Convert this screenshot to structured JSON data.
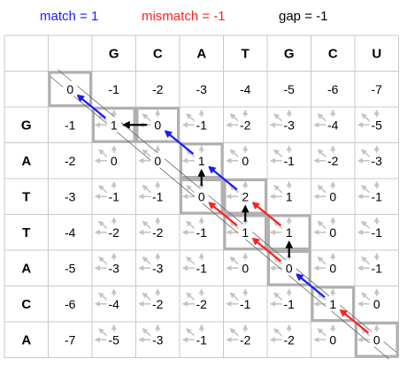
{
  "legend": {
    "match": {
      "text": "match = 1",
      "color": "#1a1aff"
    },
    "mismatch": {
      "text": "mismatch = -1",
      "color": "#ff2020"
    },
    "gap": {
      "text": "gap = -1",
      "color": "#000000"
    }
  },
  "sequence_top": [
    "G",
    "C",
    "A",
    "T",
    "G",
    "C",
    "U"
  ],
  "sequence_left": [
    "G",
    "A",
    "T",
    "T",
    "A",
    "C",
    "A"
  ],
  "matrix": [
    [
      "0",
      "-1",
      "-2",
      "-3",
      "-4",
      "-5",
      "-6",
      "-7"
    ],
    [
      "-1",
      "1",
      "0",
      "-1",
      "-2",
      "-3",
      "-4",
      "-5"
    ],
    [
      "-2",
      "0",
      "0",
      "1",
      "0",
      "-1",
      "-2",
      "-3"
    ],
    [
      "-3",
      "-1",
      "-1",
      "0",
      "2",
      "1",
      "0",
      "-1"
    ],
    [
      "-4",
      "-2",
      "-2",
      "-1",
      "1",
      "1",
      "0",
      "-1"
    ],
    [
      "-5",
      "-3",
      "-3",
      "-1",
      "0",
      "0",
      "0",
      "-1"
    ],
    [
      "-6",
      "-4",
      "-2",
      "-2",
      "-1",
      "-1",
      "1",
      "0"
    ],
    [
      "-7",
      "-5",
      "-3",
      "-1",
      "-2",
      "-2",
      "0",
      "0"
    ]
  ],
  "highlighted_path": [
    [
      0,
      0
    ],
    [
      1,
      1
    ],
    [
      1,
      2
    ],
    [
      2,
      3
    ],
    [
      3,
      3
    ],
    [
      3,
      4
    ],
    [
      4,
      4
    ],
    [
      4,
      5
    ],
    [
      5,
      5
    ],
    [
      6,
      6
    ],
    [
      7,
      7
    ]
  ],
  "trace_arrows": [
    {
      "from": [
        1,
        1
      ],
      "to": [
        0,
        0
      ],
      "color": "blue"
    },
    {
      "from": [
        1,
        2
      ],
      "to": [
        1,
        1
      ],
      "color": "black"
    },
    {
      "from": [
        2,
        3
      ],
      "to": [
        1,
        2
      ],
      "color": "blue"
    },
    {
      "from": [
        3,
        3
      ],
      "to": [
        2,
        3
      ],
      "color": "black"
    },
    {
      "from": [
        3,
        4
      ],
      "to": [
        2,
        3
      ],
      "color": "blue"
    },
    {
      "from": [
        4,
        4
      ],
      "to": [
        3,
        4
      ],
      "color": "black"
    },
    {
      "from": [
        4,
        4
      ],
      "to": [
        3,
        3
      ],
      "color": "red"
    },
    {
      "from": [
        4,
        5
      ],
      "to": [
        3,
        4
      ],
      "color": "red"
    },
    {
      "from": [
        5,
        5
      ],
      "to": [
        4,
        5
      ],
      "color": "black"
    },
    {
      "from": [
        5,
        5
      ],
      "to": [
        4,
        4
      ],
      "color": "red"
    },
    {
      "from": [
        6,
        6
      ],
      "to": [
        5,
        5
      ],
      "color": "blue"
    },
    {
      "from": [
        7,
        7
      ],
      "to": [
        6,
        6
      ],
      "color": "red"
    }
  ],
  "colors": {
    "grid": "#c8c8c8",
    "path_box": "#b0b0b0",
    "light_arrow": "#c4c4c4",
    "black": "#000000",
    "blue": "#1a1aff",
    "red": "#ff2020"
  }
}
